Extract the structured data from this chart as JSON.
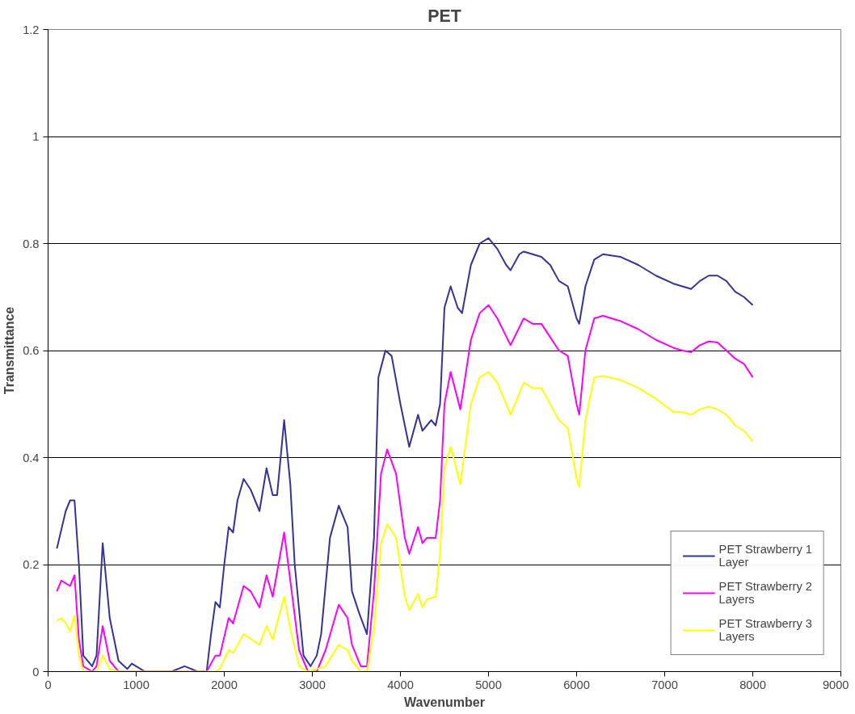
{
  "chart_data": {
    "type": "line",
    "title": "PET",
    "xlabel": "Wavenumber",
    "ylabel": "Transmittance",
    "xlim": [
      0,
      9000
    ],
    "xticks": [
      0,
      1000,
      2000,
      3000,
      4000,
      5000,
      6000,
      7000,
      8000,
      9000
    ],
    "ylim": [
      0,
      1.2
    ],
    "yticks": [
      0,
      0.2,
      0.4,
      0.6,
      0.8,
      1,
      1.2
    ],
    "grid": "y",
    "legend": "bottom right",
    "marker": "none",
    "line_style": "solid",
    "series": [
      {
        "name": "PET Strawberry 1 Layer",
        "color": "#333399",
        "x": [
          100,
          200,
          250,
          300,
          350,
          400,
          500,
          550,
          620,
          700,
          800,
          900,
          950,
          1000,
          1100,
          1400,
          1550,
          1700,
          1800,
          1850,
          1900,
          1950,
          2000,
          2050,
          2100,
          2150,
          2220,
          2300,
          2400,
          2480,
          2550,
          2600,
          2680,
          2750,
          2800,
          2900,
          2980,
          3050,
          3100,
          3200,
          3300,
          3400,
          3450,
          3530,
          3620,
          3700,
          3750,
          3830,
          3900,
          4000,
          4100,
          4150,
          4200,
          4250,
          4300,
          4350,
          4400,
          4450,
          4500,
          4570,
          4650,
          4700,
          4800,
          4900,
          5000,
          5100,
          5200,
          5250,
          5350,
          5400,
          5500,
          5600,
          5700,
          5800,
          5900,
          6000,
          6030,
          6100,
          6200,
          6300,
          6500,
          6700,
          6900,
          7100,
          7200,
          7300,
          7400,
          7500,
          7600,
          7700,
          7800,
          7900,
          8000
        ],
        "values": [
          0.23,
          0.3,
          0.32,
          0.32,
          0.2,
          0.03,
          0.01,
          0.03,
          0.24,
          0.1,
          0.02,
          0.005,
          0.015,
          0.01,
          0,
          0,
          0.01,
          0,
          0,
          0.07,
          0.13,
          0.12,
          0.2,
          0.27,
          0.26,
          0.32,
          0.36,
          0.34,
          0.3,
          0.38,
          0.33,
          0.33,
          0.47,
          0.35,
          0.2,
          0.03,
          0.01,
          0.03,
          0.07,
          0.25,
          0.31,
          0.27,
          0.15,
          0.11,
          0.07,
          0.25,
          0.55,
          0.6,
          0.59,
          0.5,
          0.42,
          0.45,
          0.48,
          0.45,
          0.46,
          0.47,
          0.46,
          0.5,
          0.68,
          0.72,
          0.68,
          0.67,
          0.76,
          0.8,
          0.81,
          0.79,
          0.76,
          0.75,
          0.78,
          0.785,
          0.78,
          0.775,
          0.76,
          0.73,
          0.72,
          0.66,
          0.65,
          0.72,
          0.77,
          0.78,
          0.775,
          0.76,
          0.74,
          0.725,
          0.72,
          0.715,
          0.73,
          0.74,
          0.74,
          0.73,
          0.71,
          0.7,
          0.685
        ]
      },
      {
        "name": "PET Strawberry 2 Layers",
        "color": "#ff00ff",
        "x": [
          100,
          150,
          250,
          300,
          350,
          400,
          500,
          550,
          620,
          700,
          800,
          1800,
          1900,
          1950,
          2050,
          2100,
          2220,
          2300,
          2400,
          2480,
          2550,
          2680,
          2750,
          2850,
          2950,
          3050,
          3150,
          3300,
          3400,
          3450,
          3550,
          3620,
          3700,
          3780,
          3850,
          3950,
          4050,
          4100,
          4200,
          4250,
          4300,
          4400,
          4450,
          4500,
          4570,
          4680,
          4800,
          4900,
          5000,
          5100,
          5250,
          5400,
          5500,
          5600,
          5800,
          5900,
          6000,
          6030,
          6100,
          6200,
          6300,
          6500,
          6700,
          6900,
          7100,
          7200,
          7300,
          7400,
          7500,
          7600,
          7700,
          7800,
          7900,
          8000
        ],
        "values": [
          0.15,
          0.17,
          0.16,
          0.18,
          0.06,
          0.01,
          0,
          0.01,
          0.085,
          0.02,
          0,
          0,
          0.03,
          0.03,
          0.1,
          0.09,
          0.16,
          0.15,
          0.12,
          0.18,
          0.14,
          0.26,
          0.17,
          0.04,
          0,
          0,
          0.04,
          0.125,
          0.1,
          0.05,
          0.01,
          0.01,
          0.15,
          0.37,
          0.415,
          0.37,
          0.25,
          0.22,
          0.27,
          0.24,
          0.25,
          0.25,
          0.32,
          0.5,
          0.56,
          0.49,
          0.62,
          0.67,
          0.685,
          0.66,
          0.61,
          0.66,
          0.65,
          0.65,
          0.6,
          0.59,
          0.5,
          0.48,
          0.6,
          0.66,
          0.665,
          0.655,
          0.64,
          0.62,
          0.605,
          0.6,
          0.597,
          0.61,
          0.617,
          0.615,
          0.6,
          0.585,
          0.575,
          0.55
        ]
      },
      {
        "name": "PET Strawberry 3 Layers",
        "color": "#ffff00",
        "x": [
          100,
          150,
          200,
          250,
          300,
          350,
          400,
          550,
          620,
          700,
          800,
          1900,
          1950,
          2050,
          2100,
          2220,
          2400,
          2480,
          2550,
          2680,
          2750,
          2850,
          2950,
          3150,
          3300,
          3400,
          3450,
          3550,
          3620,
          3700,
          3780,
          3850,
          3950,
          4050,
          4100,
          4200,
          4250,
          4300,
          4400,
          4450,
          4500,
          4570,
          4680,
          4800,
          4900,
          5000,
          5100,
          5250,
          5400,
          5500,
          5600,
          5800,
          5900,
          6000,
          6030,
          6100,
          6200,
          6300,
          6500,
          6700,
          6900,
          7100,
          7200,
          7300,
          7400,
          7500,
          7600,
          7700,
          7800,
          7900,
          8000
        ],
        "values": [
          0.095,
          0.1,
          0.09,
          0.075,
          0.105,
          0.03,
          0,
          0,
          0.03,
          0.005,
          0,
          0,
          0.005,
          0.04,
          0.035,
          0.07,
          0.05,
          0.085,
          0.06,
          0.14,
          0.08,
          0.01,
          0,
          0.01,
          0.05,
          0.04,
          0.02,
          0,
          0,
          0.08,
          0.24,
          0.275,
          0.25,
          0.14,
          0.115,
          0.145,
          0.12,
          0.135,
          0.14,
          0.22,
          0.38,
          0.42,
          0.35,
          0.5,
          0.55,
          0.56,
          0.54,
          0.48,
          0.54,
          0.53,
          0.53,
          0.47,
          0.455,
          0.36,
          0.345,
          0.47,
          0.55,
          0.552,
          0.545,
          0.53,
          0.51,
          0.485,
          0.485,
          0.48,
          0.49,
          0.495,
          0.49,
          0.48,
          0.46,
          0.45,
          0.43
        ]
      }
    ]
  }
}
